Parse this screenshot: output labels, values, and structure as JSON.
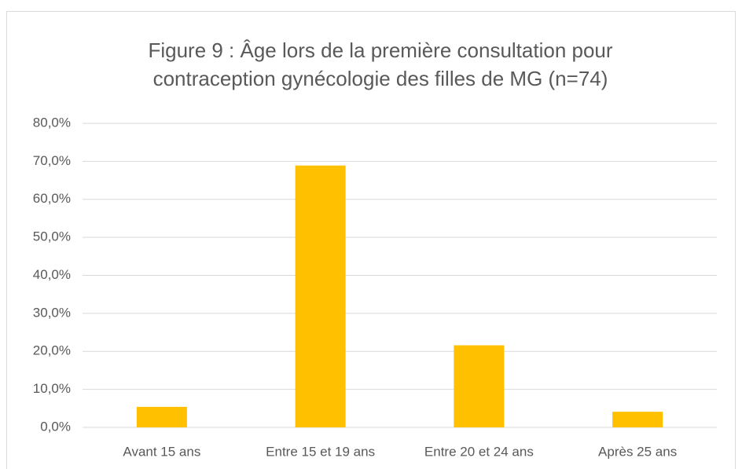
{
  "chart_data": {
    "type": "bar",
    "title": [
      "Figure 9 : Âge lors de la première consultation pour",
      "contraception gynécologie des filles de MG (n=74)"
    ],
    "categories": [
      "Avant 15 ans",
      "Entre 15 et 19 ans",
      "Entre 20 et 24 ans",
      "Après 25 ans"
    ],
    "values": [
      5.4,
      68.9,
      21.6,
      4.1
    ],
    "color": "#ffc000",
    "ylim": [
      0,
      80
    ],
    "yticks": [
      {
        "value": 0,
        "label": "0,0%"
      },
      {
        "value": 10,
        "label": "10,0%"
      },
      {
        "value": 20,
        "label": "20,0%"
      },
      {
        "value": 30,
        "label": "30,0%"
      },
      {
        "value": 40,
        "label": "40,0%"
      },
      {
        "value": 50,
        "label": "50,0%"
      },
      {
        "value": 60,
        "label": "60,0%"
      },
      {
        "value": 70,
        "label": "70,0%"
      },
      {
        "value": 80,
        "label": "80,0%"
      }
    ],
    "grid": true
  }
}
